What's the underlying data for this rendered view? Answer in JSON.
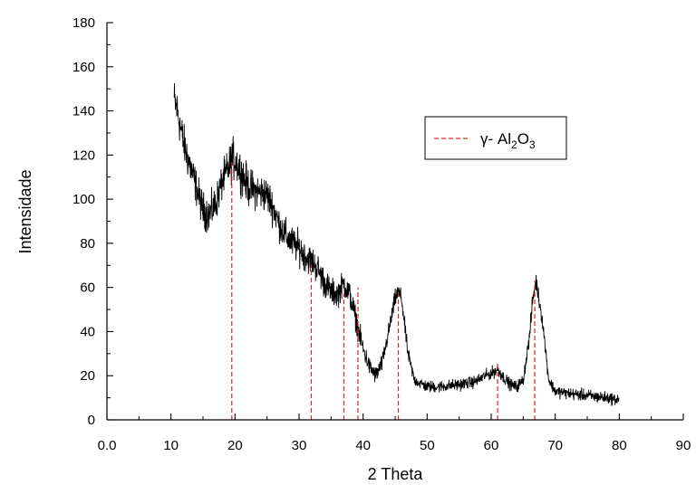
{
  "chart_data": {
    "type": "line",
    "title": "",
    "xlabel": "2 Theta",
    "ylabel": "Intensidade",
    "xlim": [
      0,
      90
    ],
    "ylim": [
      0,
      180
    ],
    "x_ticks": [
      0,
      10,
      20,
      30,
      40,
      50,
      60,
      70,
      80,
      90
    ],
    "x_tick_labels": [
      "0.0",
      "10",
      "20",
      "30",
      "40",
      "50",
      "60",
      "70",
      "80",
      "90"
    ],
    "y_ticks": [
      0,
      20,
      40,
      60,
      80,
      100,
      120,
      140,
      160,
      180
    ],
    "y_tick_labels": [
      "0",
      "20",
      "40",
      "60",
      "80",
      "100",
      "120",
      "140",
      "160",
      "180"
    ],
    "grid": false,
    "legend_position": "top-right",
    "series": [
      {
        "kind": "xrd-pattern",
        "color": "#000000",
        "x": [
          10.5,
          11,
          12,
          13,
          14,
          15,
          16,
          17,
          18,
          19,
          19.5,
          20,
          21,
          22,
          23,
          24,
          25,
          26,
          27,
          28,
          29,
          30,
          31,
          32,
          33,
          34,
          35,
          36,
          37,
          38,
          39,
          40,
          41,
          42,
          43,
          44,
          45,
          45.5,
          46,
          47,
          48,
          50,
          52,
          55,
          57,
          58,
          59,
          60,
          61,
          62,
          63,
          64,
          65,
          66,
          66.5,
          67,
          68,
          69,
          70,
          72,
          75,
          78,
          80
        ],
        "y": [
          145,
          140,
          125,
          115,
          105,
          95,
          93,
          98,
          108,
          114,
          118,
          118,
          112,
          106,
          104,
          103,
          102,
          96,
          88,
          83,
          80,
          78,
          74,
          72,
          68,
          62,
          58,
          57,
          62,
          56,
          44,
          32,
          24,
          20,
          26,
          40,
          55,
          58,
          55,
          30,
          18,
          15,
          15,
          16,
          17,
          18,
          20,
          21,
          23,
          19,
          16,
          15,
          18,
          38,
          55,
          63,
          45,
          18,
          13,
          12,
          11,
          10,
          9
        ],
        "noise_amplitude": [
          14,
          14,
          13,
          13,
          12,
          12,
          12,
          12,
          12,
          13,
          14,
          14,
          13,
          13,
          12,
          12,
          12,
          12,
          11,
          11,
          11,
          11,
          10,
          10,
          10,
          10,
          9,
          9,
          9,
          9,
          8,
          7,
          6,
          6,
          6,
          6,
          6,
          6,
          6,
          5,
          4,
          4,
          4,
          4,
          4,
          4,
          4,
          4,
          5,
          4,
          4,
          4,
          4,
          5,
          6,
          6,
          5,
          4,
          4,
          4,
          4,
          4,
          4
        ]
      }
    ],
    "reference_lines": {
      "name": "γ- Al2O3",
      "color": "#d62728",
      "style": "dashed",
      "positions": [
        19.5,
        31.9,
        37.0,
        39.2,
        45.5,
        61.0,
        66.8
      ],
      "top_values": [
        118,
        70,
        57,
        60,
        58,
        25,
        63
      ]
    },
    "legend": {
      "label_prefix": "γ- Al",
      "sub1": "2",
      "mid": "O",
      "sub2": "3"
    }
  }
}
